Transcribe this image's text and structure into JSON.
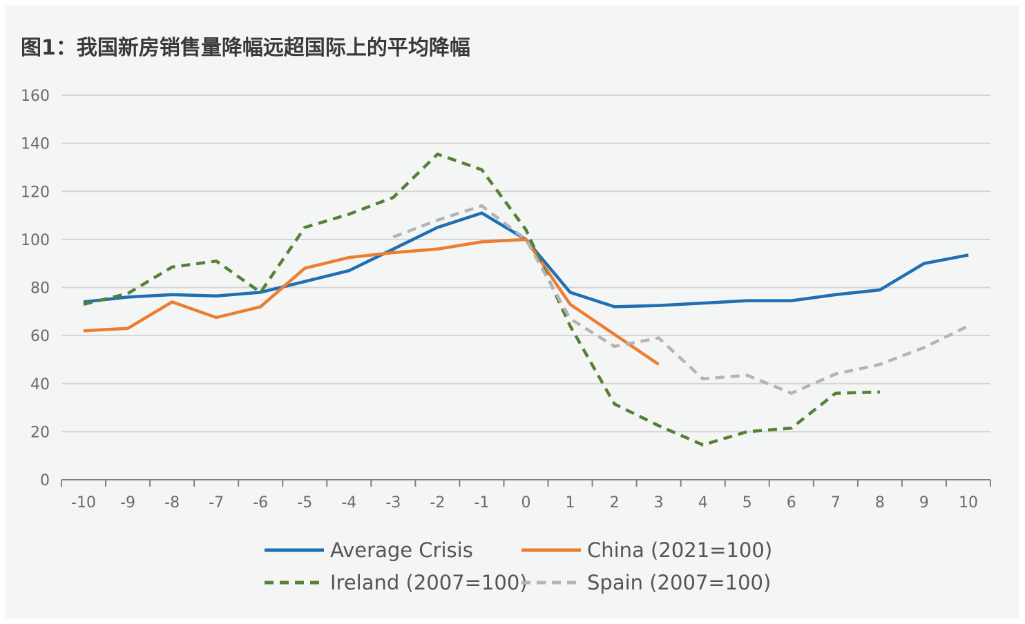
{
  "title": "图1：我国新房销售量降幅远超国际上的平均降幅",
  "chart_data": {
    "type": "line",
    "title": "图1：我国新房销售量降幅远超国际上的平均降幅",
    "xlabel": "",
    "ylabel": "",
    "x": [
      -10,
      -9,
      -8,
      -7,
      -6,
      -5,
      -4,
      -3,
      -2,
      -1,
      0,
      1,
      2,
      3,
      4,
      5,
      6,
      7,
      8,
      9,
      10
    ],
    "ylim": [
      0,
      160
    ],
    "yticks": [
      0,
      20,
      40,
      60,
      80,
      100,
      120,
      140,
      160
    ],
    "grid": true,
    "legend_position": "bottom",
    "series": [
      {
        "name": "Average Crisis",
        "color": "#1f6fb2",
        "dash": "solid",
        "values": [
          74,
          76,
          77,
          76.5,
          78,
          82.5,
          87,
          96,
          105,
          111,
          100,
          78,
          72,
          72.5,
          73.5,
          74.5,
          74.5,
          77,
          79,
          90,
          93.5
        ]
      },
      {
        "name": "China (2021=100)",
        "color": "#ed7d31",
        "dash": "solid",
        "values": [
          62,
          63,
          74,
          67.5,
          72,
          88,
          92.5,
          94.5,
          96,
          99,
          100,
          73,
          60.5,
          48,
          null,
          null,
          null,
          null,
          null,
          null,
          null
        ]
      },
      {
        "name": "Ireland (2007=100)",
        "color": "#548235",
        "dash": "dashed",
        "values": [
          73,
          77.5,
          88.5,
          91,
          78,
          105,
          110.5,
          117.5,
          135.5,
          129,
          104,
          64,
          31.5,
          22.5,
          14.5,
          20,
          21.5,
          36,
          36.5,
          null,
          null
        ]
      },
      {
        "name": "Spain (2007=100)",
        "color": "#b4b4b4",
        "dash": "dashed",
        "values": [
          null,
          null,
          null,
          null,
          null,
          null,
          null,
          101,
          108,
          114,
          100,
          67,
          55.5,
          59,
          42,
          43.5,
          36,
          44,
          48,
          55,
          64
        ]
      }
    ]
  }
}
